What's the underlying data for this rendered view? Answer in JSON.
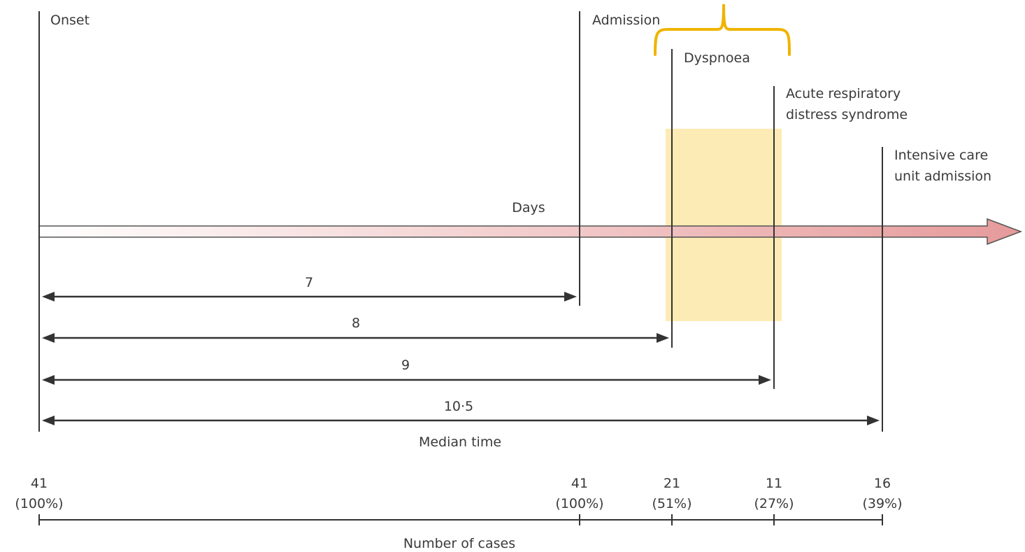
{
  "events": {
    "onset": "Onset",
    "admission": "Admission",
    "dyspnoea": "Dyspnoea",
    "ards_line1": "Acute respiratory",
    "ards_line2": "distress syndrome",
    "icu_line1": "Intensive care",
    "icu_line2": "unit admission"
  },
  "axis": {
    "label": "Days"
  },
  "intervals": [
    {
      "label": "7"
    },
    {
      "label": "8"
    },
    {
      "label": "9"
    },
    {
      "label": "10·5"
    }
  ],
  "median_label": "Median time",
  "cases": [
    {
      "count": "41",
      "pct": "(100%)"
    },
    {
      "count": "41",
      "pct": "(100%)"
    },
    {
      "count": "21",
      "pct": "(51%)"
    },
    {
      "count": "11",
      "pct": "(27%)"
    },
    {
      "count": "16",
      "pct": "(39%)"
    }
  ],
  "cases_label": "Number of cases",
  "colors": {
    "bracket": "#f0b400",
    "highlight": "#fde7a8",
    "arrow_start": "#ffffff",
    "arrow_end": "#e69a9a",
    "line": "#333333"
  }
}
